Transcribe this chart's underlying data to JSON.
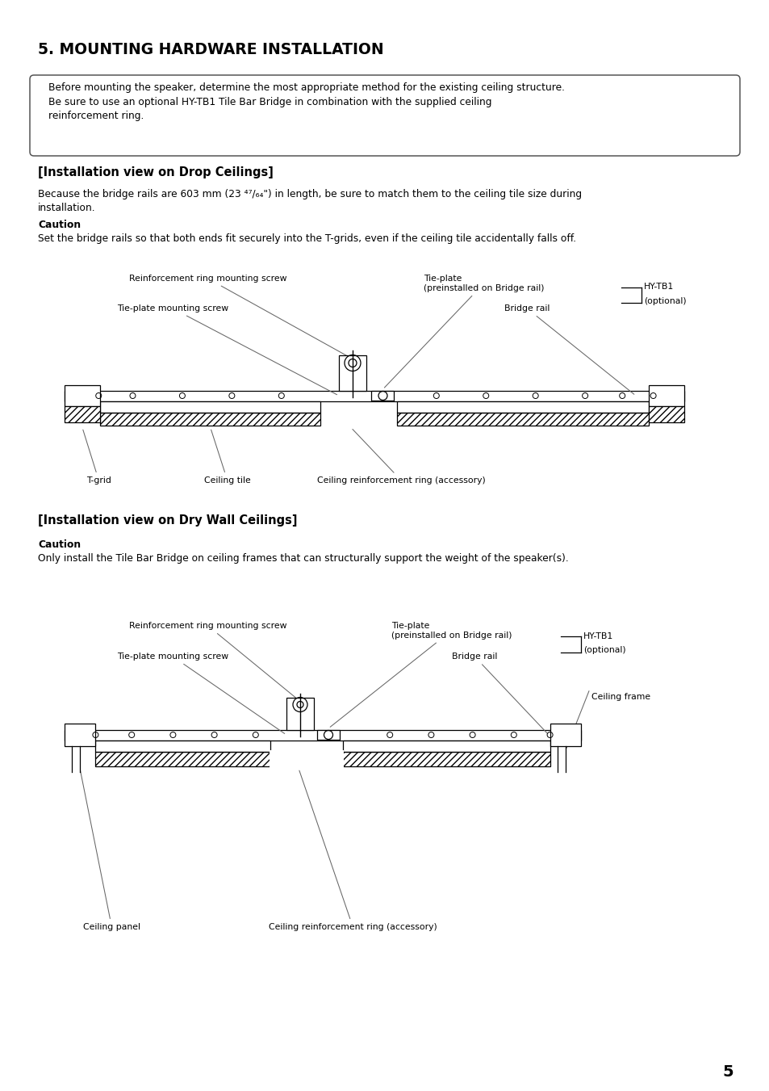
{
  "title": "5. MOUNTING HARDWARE INSTALLATION",
  "notice1": "Before mounting the speaker, determine the most appropriate method for the existing ceiling structure.",
  "notice2": "Be sure to use an optional HY-TB1 Tile Bar Bridge in combination with the supplied ceiling",
  "notice3": "reinforcement ring.",
  "sec1_title": "[Installation view on Drop Ceilings]",
  "sec1_body1": "Because the bridge rails are 603 mm (23 ⁴⁷/₆₄\") in length, be sure to match them to the ceiling tile size during",
  "sec1_body2": "installation.",
  "caution1_title": "Caution",
  "caution1_body": "Set the bridge rails so that both ends fit securely into the T-grids, even if the ceiling tile accidentally falls off.",
  "sec2_title": "[Installation view on Dry Wall Ceilings]",
  "caution2_title": "Caution",
  "caution2_body": "Only install the Tile Bar Bridge on ceiling frames that can structurally support the weight of the speaker(s).",
  "page_number": "5",
  "hytb1_line1": "HY-TB1",
  "hytb1_line2": "(optional)",
  "label_reinf_screw": "Reinforcement ring mounting screw",
  "label_tie_screw": "Tie-plate mounting screw",
  "label_tie_plate": "Tie-plate\n(preinstalled on Bridge rail)",
  "label_bridge_rail": "Bridge rail",
  "label_tgrid": "T-grid",
  "label_ceil_tile": "Ceiling tile",
  "label_ceil_ring": "Ceiling reinforcement ring (accessory)",
  "label_ceil_panel": "Ceiling panel",
  "label_ceil_frame": "Ceiling frame"
}
